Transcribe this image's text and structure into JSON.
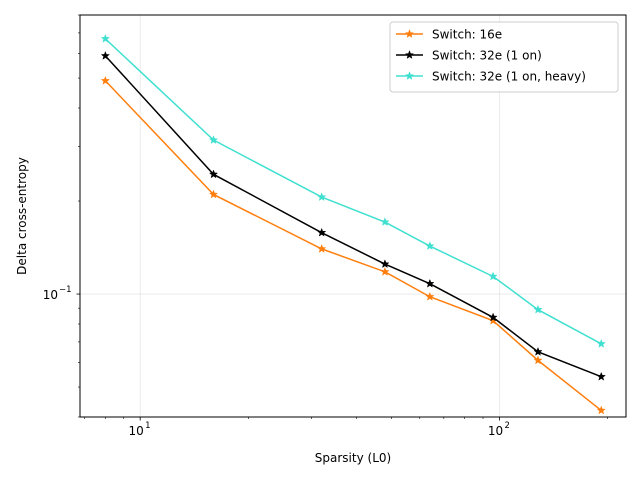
{
  "chart_data": {
    "type": "line",
    "title": "",
    "xlabel": "Sparsity (L0)",
    "ylabel": "Delta cross-entropy",
    "xscale": "log",
    "yscale": "log",
    "xlim": [
      6.8,
      225
    ],
    "ylim": [
      0.04,
      0.8
    ],
    "grid": true,
    "legend_position": "top-right",
    "x_major_ticks": [
      {
        "value": 10,
        "label": "10",
        "exp": "1"
      },
      {
        "value": 100,
        "label": "10",
        "exp": "2"
      }
    ],
    "y_major_ticks": [
      {
        "value": 0.1,
        "label": "10",
        "exp": "−1"
      }
    ],
    "series": [
      {
        "name": "Switch: 16e",
        "color": "#ff7f0e",
        "marker": "star",
        "x": [
          8,
          16,
          32,
          48,
          64,
          96,
          128,
          192
        ],
        "y": [
          0.49,
          0.21,
          0.14,
          0.118,
          0.098,
          0.082,
          0.061,
          0.042
        ]
      },
      {
        "name": "Switch: 32e (1 on)",
        "color": "#000000",
        "marker": "star",
        "x": [
          8,
          16,
          32,
          48,
          64,
          96,
          128,
          192
        ],
        "y": [
          0.59,
          0.244,
          0.158,
          0.125,
          0.108,
          0.084,
          0.065,
          0.054
        ]
      },
      {
        "name": "Switch: 32e (1 on, heavy)",
        "color": "#40e0d0",
        "marker": "star",
        "x": [
          8,
          16,
          32,
          48,
          64,
          96,
          128,
          192
        ],
        "y": [
          0.67,
          0.315,
          0.206,
          0.171,
          0.143,
          0.114,
          0.089,
          0.069
        ]
      }
    ]
  }
}
